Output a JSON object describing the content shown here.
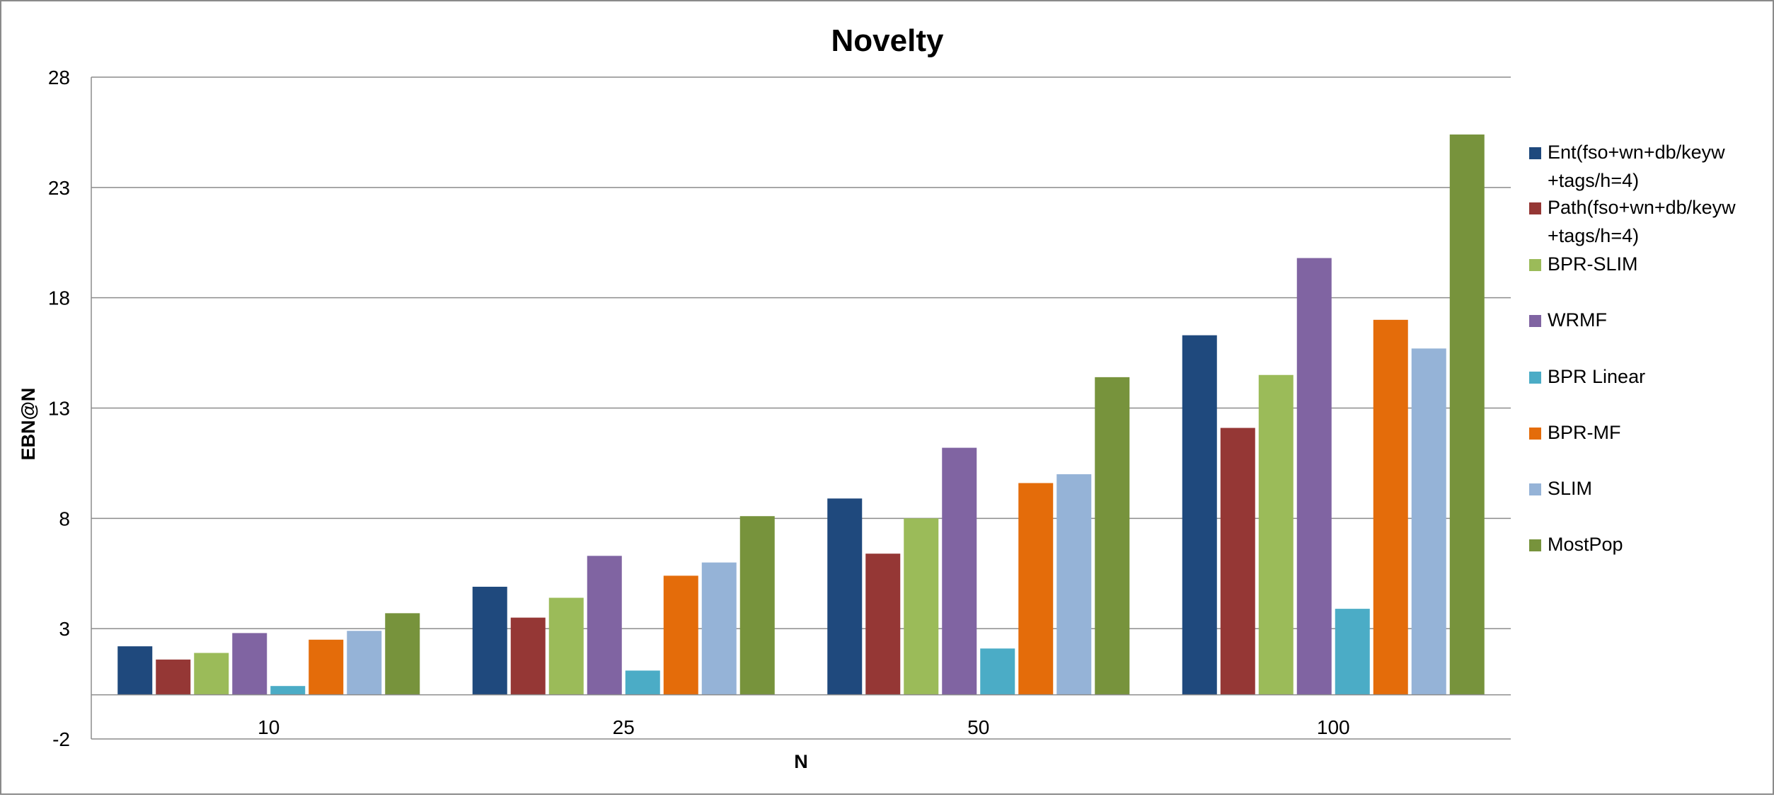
{
  "chart_data": {
    "type": "bar",
    "title": "Novelty",
    "xlabel": "N",
    "ylabel": "EBN@N",
    "ylim": [
      -2,
      28
    ],
    "yticks": [
      "-2",
      "3",
      "8",
      "13",
      "18",
      "23",
      "28"
    ],
    "grid": "horizontal",
    "legend_position": "right",
    "categories": [
      "10",
      "25",
      "50",
      "100"
    ],
    "series": [
      {
        "name": "Ent(fso+wn+db/keyw+tags/h=4)",
        "legend_lines": [
          "Ent(fso+wn+db/keyw",
          "+tags/h=4)"
        ],
        "color": "#1F497D",
        "values": [
          2.2,
          4.9,
          8.9,
          16.3
        ]
      },
      {
        "name": "Path(fso+wn+db/keyw+tags/h=4)",
        "legend_lines": [
          "Path(fso+wn+db/keyw",
          "+tags/h=4)"
        ],
        "color": "#953735",
        "values": [
          1.6,
          3.5,
          6.4,
          12.1
        ]
      },
      {
        "name": "BPR-SLIM",
        "legend_lines": [
          "BPR-SLIM"
        ],
        "color": "#9BBB59",
        "values": [
          1.9,
          4.4,
          8.0,
          14.5
        ]
      },
      {
        "name": "WRMF",
        "legend_lines": [
          "WRMF"
        ],
        "color": "#8064A2",
        "values": [
          2.8,
          6.3,
          11.2,
          19.8
        ]
      },
      {
        "name": "BPR Linear",
        "legend_lines": [
          "BPR Linear"
        ],
        "color": "#4BACC6",
        "values": [
          0.4,
          1.1,
          2.1,
          3.9
        ]
      },
      {
        "name": "BPR-MF",
        "legend_lines": [
          "BPR-MF"
        ],
        "color": "#E46C0A",
        "values": [
          2.5,
          5.4,
          9.6,
          17.0
        ]
      },
      {
        "name": "SLIM",
        "legend_lines": [
          "SLIM"
        ],
        "color": "#95B3D7",
        "values": [
          2.9,
          6.0,
          10.0,
          15.7
        ]
      },
      {
        "name": "MostPop",
        "legend_lines": [
          "MostPop"
        ],
        "color": "#77933C",
        "values": [
          3.7,
          8.1,
          14.4,
          25.4
        ]
      }
    ]
  }
}
